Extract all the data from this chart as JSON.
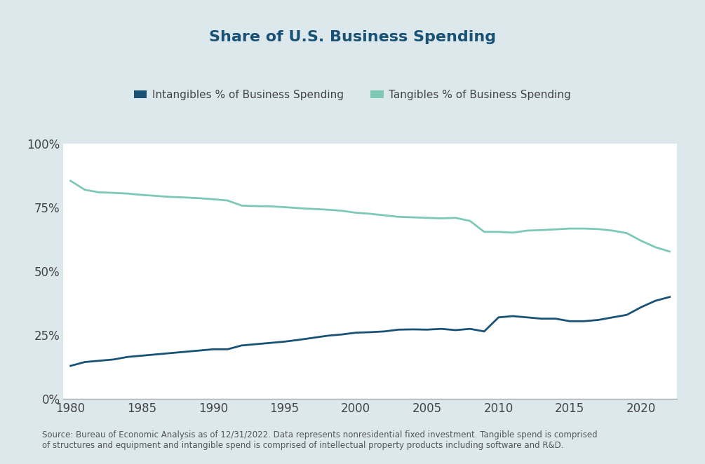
{
  "title": "Share of U.S. Business Spending",
  "title_color": "#1a5276",
  "background_color": "#dce8ec",
  "plot_background_color": "#ffffff",
  "legend_labels": [
    "Intangibles % of Business Spending",
    "Tangibles % of Business Spending"
  ],
  "intangibles_color": "#1a5276",
  "tangibles_color": "#7ec8b8",
  "source_text": "Source: Bureau of Economic Analysis as of 12/31/2022. Data represents nonresidential fixed investment. Tangible spend is comprised\nof structures and equipment and intangible spend is comprised of intellectual property products including software and R&D.",
  "years": [
    1980,
    1981,
    1982,
    1983,
    1984,
    1985,
    1986,
    1987,
    1988,
    1989,
    1990,
    1991,
    1992,
    1993,
    1994,
    1995,
    1996,
    1997,
    1998,
    1999,
    2000,
    2001,
    2002,
    2003,
    2004,
    2005,
    2006,
    2007,
    2008,
    2009,
    2010,
    2011,
    2012,
    2013,
    2014,
    2015,
    2016,
    2017,
    2018,
    2019,
    2020,
    2021,
    2022
  ],
  "intangibles": [
    0.13,
    0.145,
    0.15,
    0.155,
    0.165,
    0.17,
    0.175,
    0.18,
    0.185,
    0.19,
    0.195,
    0.195,
    0.21,
    0.215,
    0.22,
    0.225,
    0.232,
    0.24,
    0.248,
    0.253,
    0.26,
    0.262,
    0.265,
    0.272,
    0.273,
    0.272,
    0.275,
    0.27,
    0.275,
    0.265,
    0.32,
    0.325,
    0.32,
    0.315,
    0.315,
    0.305,
    0.305,
    0.31,
    0.32,
    0.33,
    0.36,
    0.385,
    0.4
  ],
  "tangibles": [
    0.855,
    0.82,
    0.81,
    0.808,
    0.805,
    0.8,
    0.796,
    0.792,
    0.79,
    0.787,
    0.783,
    0.778,
    0.758,
    0.756,
    0.755,
    0.752,
    0.748,
    0.745,
    0.742,
    0.738,
    0.73,
    0.726,
    0.72,
    0.714,
    0.712,
    0.71,
    0.708,
    0.71,
    0.698,
    0.655,
    0.655,
    0.652,
    0.66,
    0.662,
    0.665,
    0.668,
    0.668,
    0.666,
    0.66,
    0.65,
    0.62,
    0.595,
    0.578
  ],
  "ylim": [
    0,
    1.0
  ],
  "yticks": [
    0,
    0.25,
    0.5,
    0.75,
    1.0
  ],
  "ytick_labels": [
    "0%",
    "25%",
    "50%",
    "75%",
    "100%"
  ],
  "xlim": [
    1979.5,
    2022.5
  ],
  "xticks": [
    1980,
    1985,
    1990,
    1995,
    2000,
    2005,
    2010,
    2015,
    2020
  ]
}
